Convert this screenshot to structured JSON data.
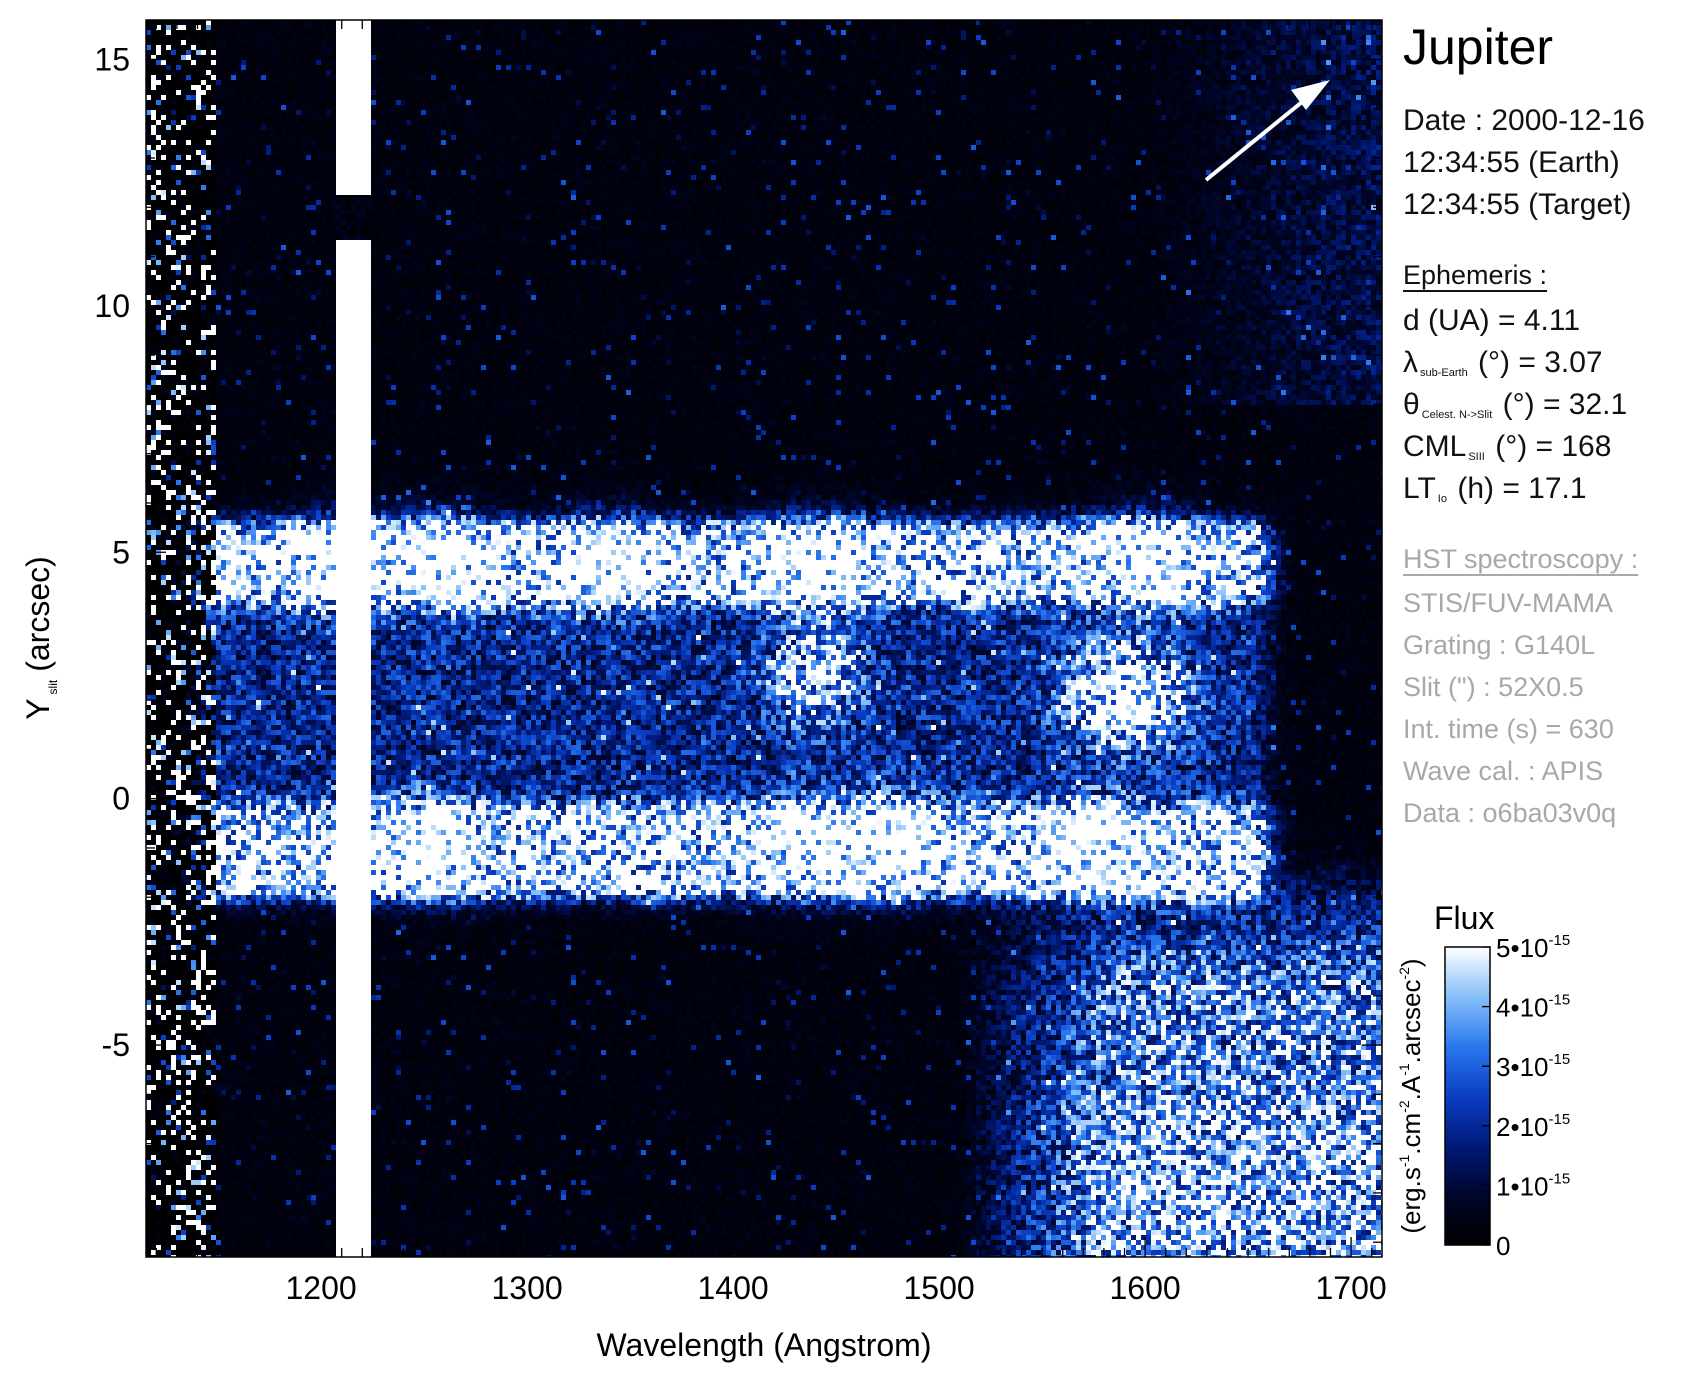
{
  "chart_data": {
    "type": "heatmap",
    "title": "Jupiter",
    "xlabel": "Wavelength (Angstrom)",
    "ylabel_main": "Y",
    "ylabel_sub": "slit",
    "ylabel_unit": "(arcsec)",
    "xlim": [
      1115,
      1715
    ],
    "ylim": [
      -9.3,
      15.8
    ],
    "xticks": [
      1200,
      1300,
      1400,
      1500,
      1600,
      1700
    ],
    "yticks": [
      -5,
      0,
      5,
      10,
      15
    ],
    "features": {
      "lyman_alpha_column_x": [
        1208,
        1224
      ],
      "slit_gap_y": [
        11.3,
        12.2
      ],
      "planet_limb_rows_y": [
        [
          4.25,
          5.3
        ],
        [
          -1.7,
          -0.45
        ]
      ],
      "disk_band_y": [
        -1.7,
        5.3
      ],
      "emission_extent_x": [
        1150,
        1650
      ],
      "bright_spots": [
        {
          "x": 1210,
          "y": 4.8
        },
        {
          "x": 1260,
          "y": 4.8
        },
        {
          "x": 1340,
          "y": 4.8
        },
        {
          "x": 1440,
          "y": 4.8
        },
        {
          "x": 1600,
          "y": 4.9
        },
        {
          "x": 1580,
          "y": 2.2
        },
        {
          "x": 1600,
          "y": 2.0
        },
        {
          "x": 1440,
          "y": 2.5
        },
        {
          "x": 1250,
          "y": -1.0
        },
        {
          "x": 1440,
          "y": -0.9
        },
        {
          "x": 1480,
          "y": -0.9
        },
        {
          "x": 1575,
          "y": -0.9
        }
      ],
      "red_leak_region": {
        "x_from": 1540,
        "y_to": -2.0
      }
    },
    "colorbar": {
      "label": "Flux",
      "units_parts": [
        "(erg.s",
        "-1",
        ".cm",
        "-2",
        ".A",
        "-1",
        ".arcsec",
        "-2",
        ")"
      ],
      "range": [
        0,
        5e-15
      ],
      "tick_values": [
        0,
        1e-15,
        2e-15,
        3e-15,
        4e-15,
        5e-15
      ],
      "tick_labels": [
        {
          "main": "0",
          "exp": ""
        },
        {
          "main": "1•10",
          "exp": "-15"
        },
        {
          "main": "2•10",
          "exp": "-15"
        },
        {
          "main": "3•10",
          "exp": "-15"
        },
        {
          "main": "4•10",
          "exp": "-15"
        },
        {
          "main": "5•10",
          "exp": "-15"
        }
      ],
      "colors": [
        "#000000",
        "#00052a",
        "#001a7a",
        "#0a3ec4",
        "#2a78ee",
        "#86bff8",
        "#ffffff"
      ]
    }
  },
  "info": {
    "title": "Jupiter",
    "date": "Date : 2000-12-16",
    "time_earth": "12:34:55 (Earth)",
    "time_target": "12:34:55 (Target)",
    "ephem_header": "Ephemeris :",
    "ephem": {
      "d": "d (UA)     = 4.11",
      "lambda_sym": "λ",
      "lambda_sub": "sub-Earth",
      "lambda_rest": "(°)  = 3.07",
      "theta_sym": "θ",
      "theta_sub": "Celest. N->Slit",
      "theta_rest": "(°) = 32.1",
      "cml_sym": "CML",
      "cml_sub": "SIII",
      "cml_rest": "(°) = 168",
      "lt_sym": "LT",
      "lt_sub": "Io",
      "lt_rest": "(h) = 17.1"
    },
    "hst_header": "HST spectroscopy :",
    "hst": [
      "STIS/FUV-MAMA",
      "Grating : G140L",
      "Slit (\") : 52X0.5",
      "Int. time (s) = 630",
      "Wave cal. : APIS",
      "Data : o6ba03v0q"
    ]
  }
}
